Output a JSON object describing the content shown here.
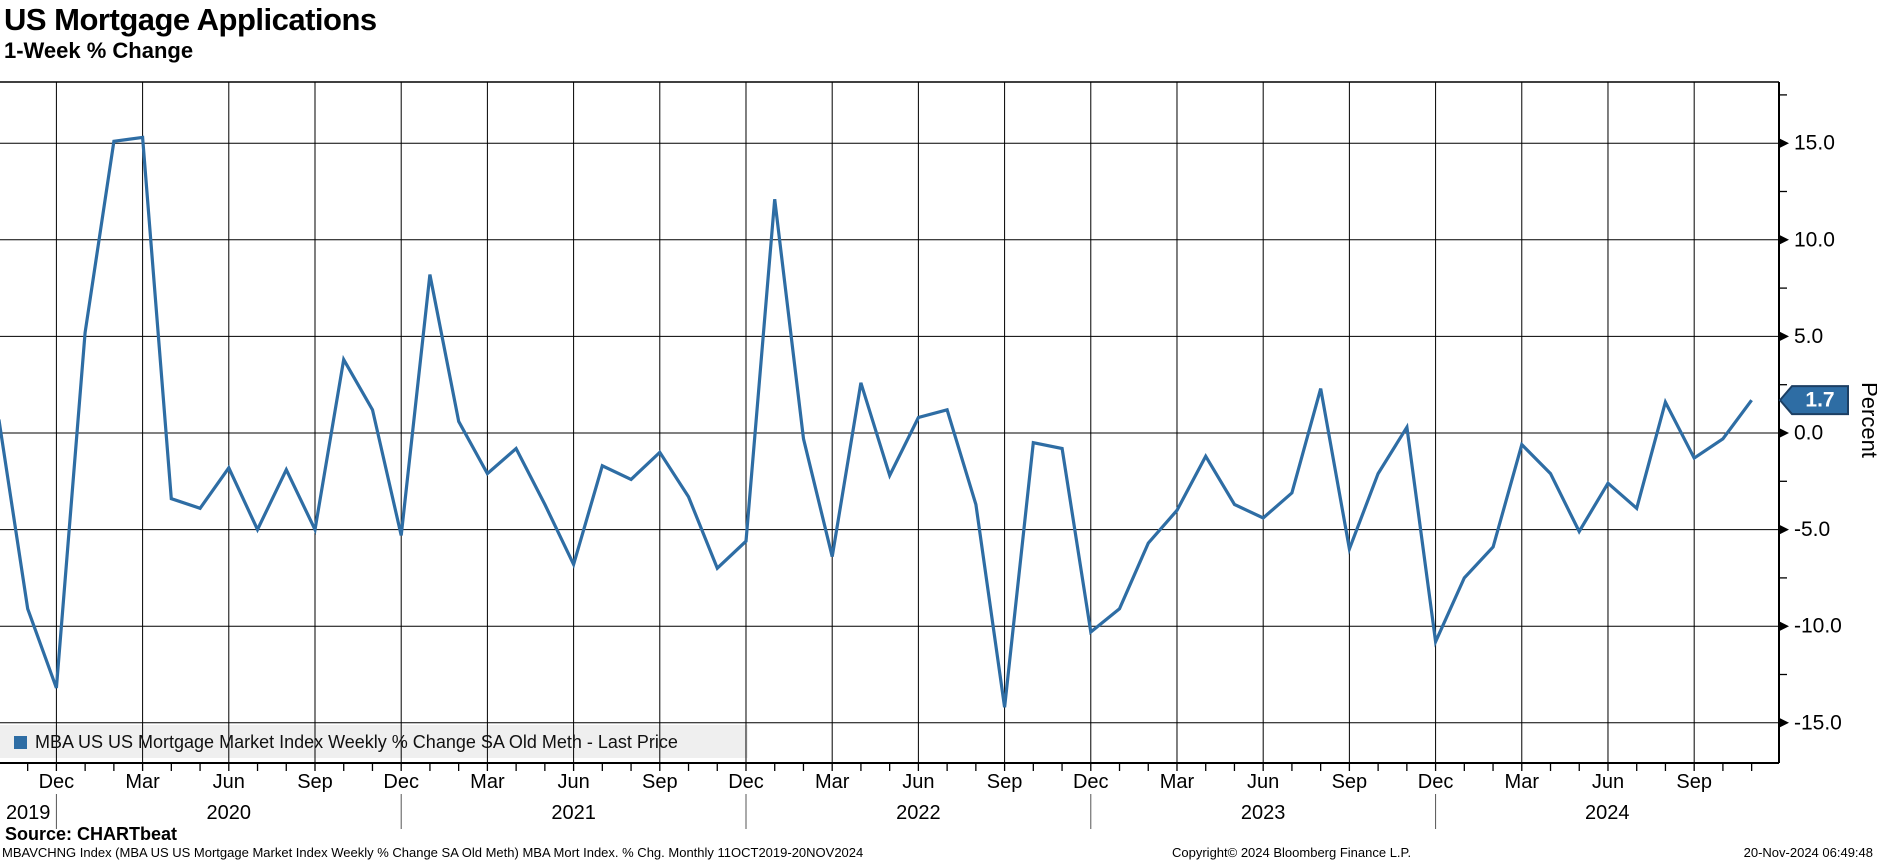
{
  "header": {
    "title": "US Mortgage Applications",
    "subtitle": "1-Week % Change"
  },
  "legend": {
    "label": "MBA US US Mortgage Market Index Weekly % Change SA Old Meth - Last Price"
  },
  "source_line": "Source: CHARTbeat",
  "footer": {
    "left": "MBAVCHNG Index (MBA US US Mortgage Market Index Weekly % Change SA Old Meth) MBA Mort Index. % Chg.  Monthly 11OCT2019-20NOV2024",
    "center": "Copyright© 2024 Bloomberg Finance L.P.",
    "right": "20-Nov-2024 06:49:48"
  },
  "colors": {
    "line": "#2e6da4",
    "badge_fill": "#2e6da4",
    "badge_border": "#1c3f63",
    "badge_text": "#ffffff",
    "legend_bg": "#efefef",
    "grid": "#000000"
  },
  "chart_data": {
    "type": "line",
    "title": "US Mortgage Applications",
    "subtitle": "1-Week % Change",
    "ylabel": "Percent",
    "ylim": [
      -17.1,
      18.2
    ],
    "y_major_ticks": [
      15,
      10,
      5,
      0,
      -5,
      -10,
      -15
    ],
    "y_minor_step": 2.5,
    "grid": true,
    "legend_position": "bottom-left",
    "x_tick_months": [
      "Dec",
      "Mar",
      "Jun",
      "Sep"
    ],
    "year_labels": [
      "2019",
      "2020",
      "2021",
      "2022",
      "2023",
      "2024"
    ],
    "last_price": 1.7,
    "series": [
      {
        "name": "MBA US US Mortgage Market Index Weekly % Change SA Old Meth - Last Price",
        "color": "#2e6da4",
        "months": [
          "2019-10",
          "2019-11",
          "2019-12",
          "2020-01",
          "2020-02",
          "2020-03",
          "2020-04",
          "2020-05",
          "2020-06",
          "2020-07",
          "2020-08",
          "2020-09",
          "2020-10",
          "2020-11",
          "2020-12",
          "2021-01",
          "2021-02",
          "2021-03",
          "2021-04",
          "2021-05",
          "2021-06",
          "2021-07",
          "2021-08",
          "2021-09",
          "2021-10",
          "2021-11",
          "2021-12",
          "2022-01",
          "2022-02",
          "2022-03",
          "2022-04",
          "2022-05",
          "2022-06",
          "2022-07",
          "2022-08",
          "2022-09",
          "2022-10",
          "2022-11",
          "2022-12",
          "2023-01",
          "2023-02",
          "2023-03",
          "2023-04",
          "2023-05",
          "2023-06",
          "2023-07",
          "2023-08",
          "2023-09",
          "2023-10",
          "2023-11",
          "2023-12",
          "2024-01",
          "2024-02",
          "2024-03",
          "2024-04",
          "2024-05",
          "2024-06",
          "2024-07",
          "2024-08",
          "2024-09",
          "2024-10",
          "2024-11"
        ],
        "values": [
          0.7,
          -9.1,
          -13.2,
          5.2,
          15.1,
          15.3,
          -3.4,
          -3.9,
          -1.8,
          -5.0,
          -1.9,
          -5.0,
          3.8,
          1.2,
          -5.3,
          8.2,
          0.6,
          -2.1,
          -0.8,
          -3.7,
          -6.8,
          -1.7,
          -2.4,
          -1.0,
          -3.3,
          -7.0,
          -5.6,
          12.1,
          -0.3,
          -6.4,
          2.6,
          -2.2,
          0.8,
          1.2,
          -3.7,
          -14.2,
          -0.5,
          -0.8,
          -10.3,
          -9.1,
          -5.7,
          -4.0,
          -1.2,
          -3.7,
          -4.4,
          -3.1,
          2.3,
          -6.0,
          -2.1,
          0.3,
          -10.8,
          -7.5,
          -5.9,
          -0.6,
          -2.1,
          -5.1,
          -2.6,
          -3.9,
          1.6,
          -1.3,
          -0.3,
          1.7
        ]
      }
    ]
  }
}
